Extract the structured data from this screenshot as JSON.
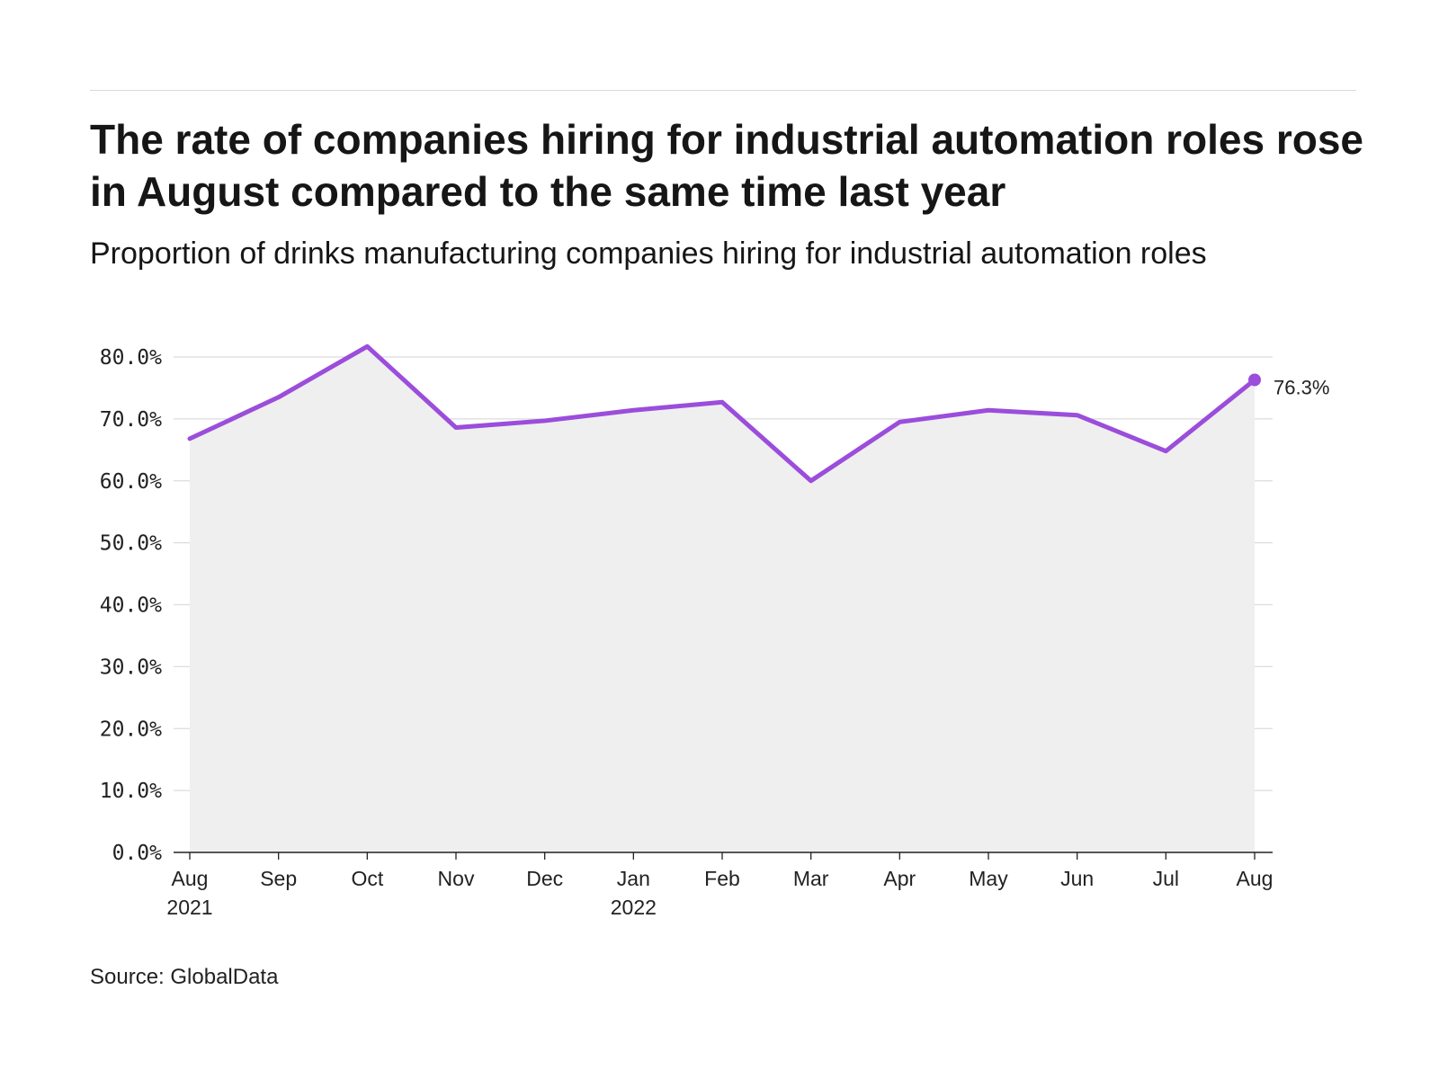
{
  "title": "The rate of companies hiring for industrial automation roles rose in August compared to the same time last year",
  "subtitle": "Proportion of drinks manufacturing companies hiring for industrial automation roles",
  "source": "Source: GlobalData",
  "colors": {
    "line": "#9b4ddb",
    "area": "#efefef",
    "grid": "#dcdcdc",
    "axis": "#222222"
  },
  "chart_data": {
    "type": "area",
    "title": "The rate of companies hiring for industrial automation roles rose in August compared to the same time last year",
    "subtitle": "Proportion of drinks manufacturing companies hiring for industrial automation roles",
    "xlabel": "",
    "ylabel": "",
    "categories": [
      "Aug 2021",
      "Sep",
      "Oct",
      "Nov",
      "Dec",
      "Jan 2022",
      "Feb",
      "Mar",
      "Apr",
      "May",
      "Jun",
      "Jul",
      "Aug"
    ],
    "x_tick_labels": [
      [
        "Aug",
        "2021"
      ],
      [
        "Sep"
      ],
      [
        "Oct"
      ],
      [
        "Nov"
      ],
      [
        "Dec"
      ],
      [
        "Jan",
        "2022"
      ],
      [
        "Feb"
      ],
      [
        "Mar"
      ],
      [
        "Apr"
      ],
      [
        "May"
      ],
      [
        "Jun"
      ],
      [
        "Jul"
      ],
      [
        "Aug"
      ]
    ],
    "values": [
      66.8,
      73.5,
      81.7,
      68.6,
      69.7,
      71.4,
      72.7,
      60.0,
      69.5,
      71.4,
      70.6,
      64.8,
      76.3
    ],
    "ylim": [
      0,
      80
    ],
    "y_ticks": [
      "0.0%",
      "10.0%",
      "20.0%",
      "30.0%",
      "40.0%",
      "50.0%",
      "60.0%",
      "70.0%",
      "80.0%"
    ],
    "end_label": "76.3%",
    "grid": true,
    "legend": "none"
  }
}
